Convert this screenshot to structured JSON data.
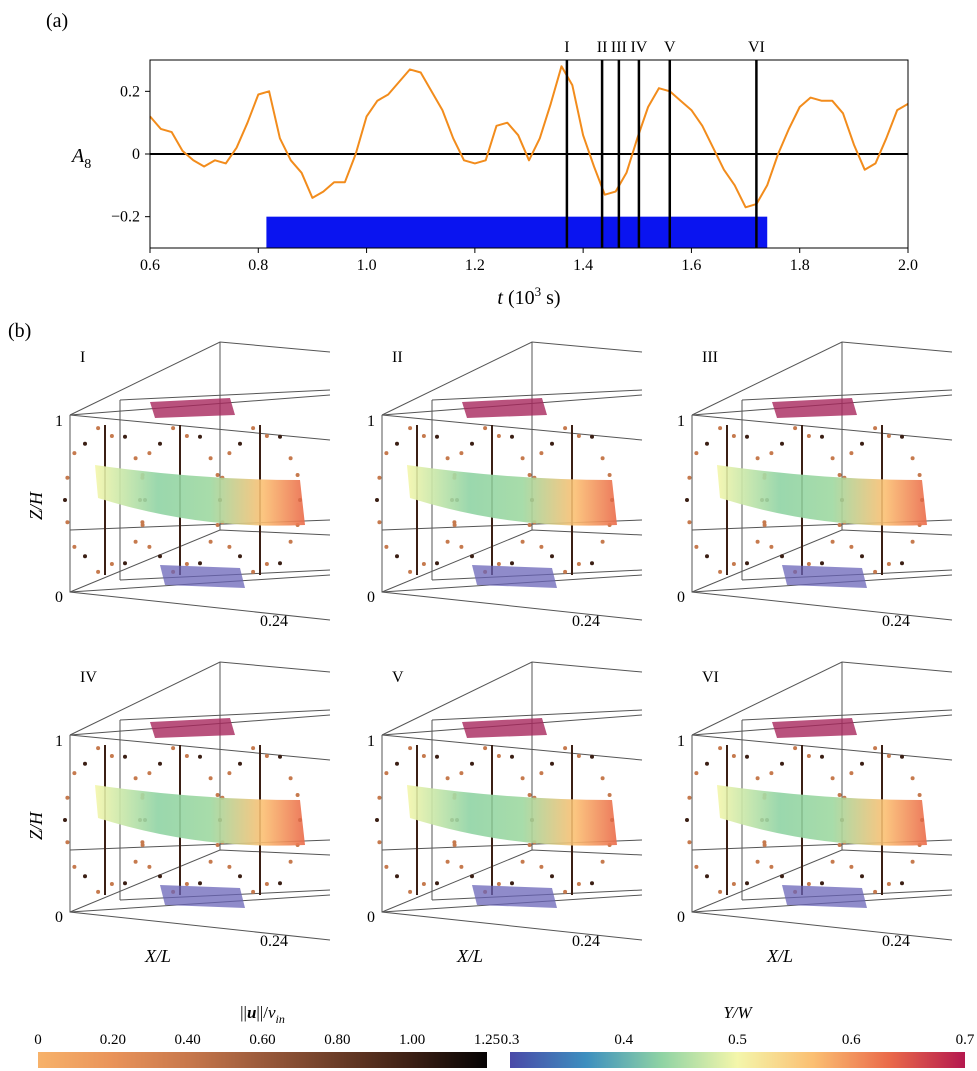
{
  "panel_a_label": "(a)",
  "panel_b_label": "(b)",
  "chart_data": {
    "type": "line",
    "title": "",
    "xlabel": "t (10^3 s)",
    "xlabel_parts": {
      "var": "t",
      "unit_pre": " (10",
      "sup": "3",
      "unit_post": " s)"
    },
    "ylabel": "A_8",
    "ylabel_parts": {
      "var": "A",
      "sub": "8"
    },
    "xlim": [
      0.6,
      2.0
    ],
    "ylim": [
      -0.3,
      0.3
    ],
    "x_ticks": [
      0.6,
      0.8,
      1.0,
      1.2,
      1.4,
      1.6,
      1.8,
      2.0
    ],
    "x_tick_labels": [
      "0.6",
      "0.8",
      "1.0",
      "1.2",
      "1.4",
      "1.6",
      "1.8",
      "2.0"
    ],
    "y_ticks": [
      0.2,
      0,
      -0.2
    ],
    "y_tick_labels": [
      "0.2",
      "0",
      "−0.2"
    ],
    "zero_line": true,
    "series": [
      {
        "color": "#f28c1c",
        "x": [
          0.6,
          0.62,
          0.64,
          0.66,
          0.68,
          0.7,
          0.72,
          0.74,
          0.76,
          0.78,
          0.8,
          0.82,
          0.84,
          0.86,
          0.88,
          0.9,
          0.92,
          0.94,
          0.96,
          0.98,
          1.0,
          1.02,
          1.04,
          1.06,
          1.08,
          1.1,
          1.12,
          1.14,
          1.16,
          1.18,
          1.2,
          1.22,
          1.24,
          1.26,
          1.28,
          1.3,
          1.32,
          1.34,
          1.36,
          1.38,
          1.4,
          1.42,
          1.44,
          1.46,
          1.48,
          1.5,
          1.52,
          1.54,
          1.56,
          1.58,
          1.6,
          1.62,
          1.64,
          1.66,
          1.68,
          1.7,
          1.72,
          1.74,
          1.76,
          1.78,
          1.8,
          1.82,
          1.84,
          1.86,
          1.88,
          1.9,
          1.92,
          1.94,
          1.96,
          1.98,
          2.0
        ],
        "y": [
          0.12,
          0.08,
          0.07,
          0.01,
          -0.02,
          -0.04,
          -0.02,
          -0.03,
          0.02,
          0.1,
          0.19,
          0.2,
          0.05,
          -0.02,
          -0.06,
          -0.14,
          -0.12,
          -0.09,
          -0.09,
          0.0,
          0.12,
          0.17,
          0.19,
          0.23,
          0.27,
          0.26,
          0.2,
          0.14,
          0.05,
          -0.02,
          -0.03,
          -0.02,
          0.09,
          0.1,
          0.06,
          -0.02,
          0.05,
          0.16,
          0.28,
          0.22,
          0.06,
          -0.04,
          -0.13,
          -0.12,
          -0.06,
          0.05,
          0.15,
          0.21,
          0.2,
          0.17,
          0.14,
          0.09,
          0.02,
          -0.05,
          -0.1,
          -0.17,
          -0.16,
          -0.1,
          0.0,
          0.08,
          0.15,
          0.18,
          0.17,
          0.17,
          0.13,
          0.03,
          -0.05,
          -0.03,
          0.05,
          0.14,
          0.16
        ]
      }
    ],
    "highlight_band": {
      "x_start": 0.815,
      "x_end": 1.74,
      "y_start": -0.3,
      "y_end": -0.2,
      "color": "#0a14f0"
    },
    "markers": [
      {
        "label": "I",
        "x": 1.37
      },
      {
        "label": "II",
        "x": 1.435
      },
      {
        "label": "III",
        "x": 1.466
      },
      {
        "label": "IV",
        "x": 1.503
      },
      {
        "label": "V",
        "x": 1.56
      },
      {
        "label": "VI",
        "x": 1.72
      }
    ]
  },
  "snapshots": [
    {
      "label": "I",
      "z_top": "1",
      "z_bottom": "0",
      "x_tick": "0.24",
      "z_axis_label": "Z/H",
      "x_axis_label": ""
    },
    {
      "label": "II",
      "z_top": "1",
      "z_bottom": "0",
      "x_tick": "0.24",
      "z_axis_label": "",
      "x_axis_label": ""
    },
    {
      "label": "III",
      "z_top": "1",
      "z_bottom": "0",
      "x_tick": "0.24",
      "z_axis_label": "",
      "x_axis_label": ""
    },
    {
      "label": "IV",
      "z_top": "1",
      "z_bottom": "0",
      "x_tick": "0.24",
      "z_axis_label": "Z/H",
      "x_axis_label": "X/L"
    },
    {
      "label": "V",
      "z_top": "1",
      "z_bottom": "0",
      "x_tick": "0.24",
      "z_axis_label": "",
      "x_axis_label": "X/L"
    },
    {
      "label": "VI",
      "z_top": "1",
      "z_bottom": "0",
      "x_tick": "0.24",
      "z_axis_label": "",
      "x_axis_label": "X/L"
    }
  ],
  "colorbars": [
    {
      "title": "||u||/v_in",
      "title_parts": {
        "pre": "||",
        "bold": "u",
        "mid": "||/",
        "var": "v",
        "sub": "in"
      },
      "ticks": [
        "0",
        "0.20",
        "0.40",
        "0.60",
        "0.80",
        "1.00",
        "1.25"
      ],
      "colors": [
        "#f7b26a",
        "#e9935a",
        "#c8784c",
        "#9a5a3b",
        "#6b3c27",
        "#3b1f14",
        "#050303"
      ]
    },
    {
      "title": "Y/W",
      "ticks": [
        "0.3",
        "0.4",
        "0.5",
        "0.6",
        "0.7"
      ],
      "colors": [
        "#4a4aa8",
        "#3d8fbf",
        "#8fd3a4",
        "#f4f6ab",
        "#fbbf72",
        "#ea6a4a",
        "#b4184e"
      ]
    }
  ]
}
